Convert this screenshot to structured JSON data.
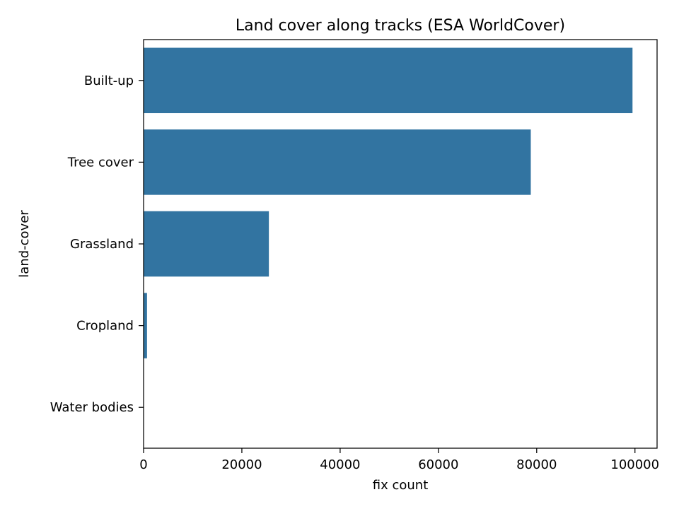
{
  "chart_data": {
    "type": "bar",
    "orientation": "horizontal",
    "title": "Land cover along tracks (ESA WorldCover)",
    "xlabel": "fix count",
    "ylabel": "land-cover",
    "categories": [
      "Built-up",
      "Tree cover",
      "Grassland",
      "Cropland",
      "Water bodies"
    ],
    "values": [
      99500,
      78800,
      25500,
      700,
      0
    ],
    "xlim": [
      0,
      104500
    ],
    "xticks": [
      0,
      20000,
      40000,
      60000,
      80000,
      100000
    ],
    "xtick_labels": [
      "0",
      "20000",
      "40000",
      "60000",
      "80000",
      "100000"
    ],
    "bar_color": "#3274a1",
    "grid": false,
    "legend": "none"
  }
}
